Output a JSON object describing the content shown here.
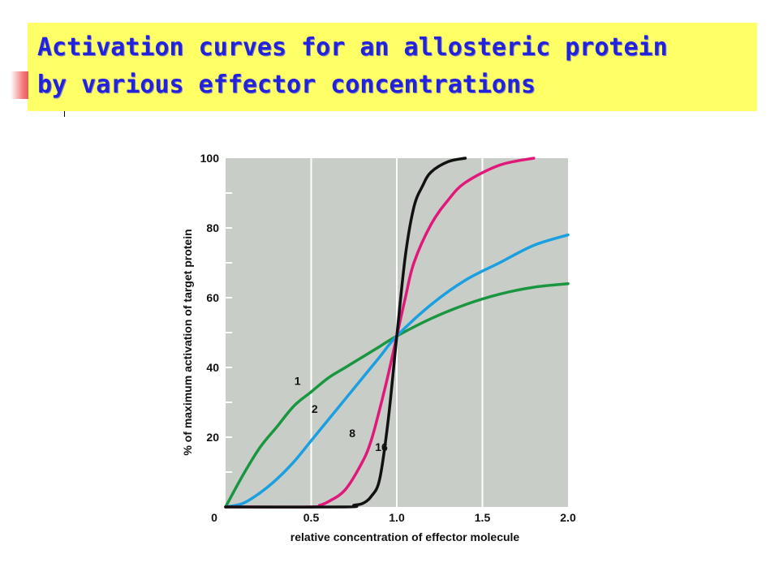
{
  "header": {
    "title_line1": "Activation curves for an allosteric protein",
    "title_line2": "by various effector concentrations"
  },
  "chart_data": {
    "type": "line",
    "title": "",
    "xlabel": "relative concentration of effector molecule",
    "ylabel": "% of maximum activation of target protein",
    "xlim": [
      0,
      2.0
    ],
    "ylim": [
      0,
      100
    ],
    "x_ticks": [
      "0",
      "0.5",
      "1.0",
      "1.5",
      "2.0"
    ],
    "y_ticks": [
      "20",
      "40",
      "60",
      "80",
      "100"
    ],
    "grid": "vertical",
    "background_color": "#c9cdc8",
    "series": [
      {
        "name": "1",
        "color": "#1a9640",
        "x": [
          0,
          0.1,
          0.2,
          0.3,
          0.4,
          0.5,
          0.6,
          0.7,
          0.8,
          0.9,
          1.0,
          1.2,
          1.4,
          1.6,
          1.8,
          2.0
        ],
        "y": [
          0,
          9,
          17,
          23,
          29,
          33,
          37,
          40,
          43,
          46,
          49,
          54,
          58,
          61,
          63,
          64
        ]
      },
      {
        "name": "2",
        "color": "#1a9fe0",
        "x": [
          0,
          0.1,
          0.2,
          0.3,
          0.4,
          0.5,
          0.6,
          0.7,
          0.8,
          0.9,
          1.0,
          1.2,
          1.4,
          1.6,
          1.8,
          2.0
        ],
        "y": [
          0,
          1,
          4,
          8,
          13,
          19,
          25,
          31,
          37,
          43,
          49,
          58,
          65,
          70,
          75,
          78
        ]
      },
      {
        "name": "8",
        "color": "#e0187a",
        "x": [
          0,
          0.5,
          0.55,
          0.6,
          0.7,
          0.8,
          0.85,
          0.9,
          0.95,
          1.0,
          1.05,
          1.1,
          1.2,
          1.3,
          1.4,
          1.6,
          1.8
        ],
        "y": [
          0,
          0,
          0.5,
          1.5,
          5,
          13,
          19,
          28,
          38,
          49,
          60,
          70,
          81,
          88,
          93,
          98,
          100
        ]
      },
      {
        "name": "16",
        "color": "#111111",
        "x": [
          0,
          0.7,
          0.75,
          0.8,
          0.85,
          0.9,
          0.95,
          1.0,
          1.05,
          1.1,
          1.15,
          1.2,
          1.3,
          1.4
        ],
        "y": [
          0,
          0,
          0.5,
          1,
          3,
          8,
          25,
          49,
          72,
          86,
          92,
          96,
          99,
          100
        ]
      }
    ],
    "curve_labels": [
      {
        "text": "1",
        "x": 0.42,
        "y": 35
      },
      {
        "text": "2",
        "x": 0.52,
        "y": 27
      },
      {
        "text": "8",
        "x": 0.74,
        "y": 20
      },
      {
        "text": "16",
        "x": 0.91,
        "y": 16
      }
    ]
  }
}
